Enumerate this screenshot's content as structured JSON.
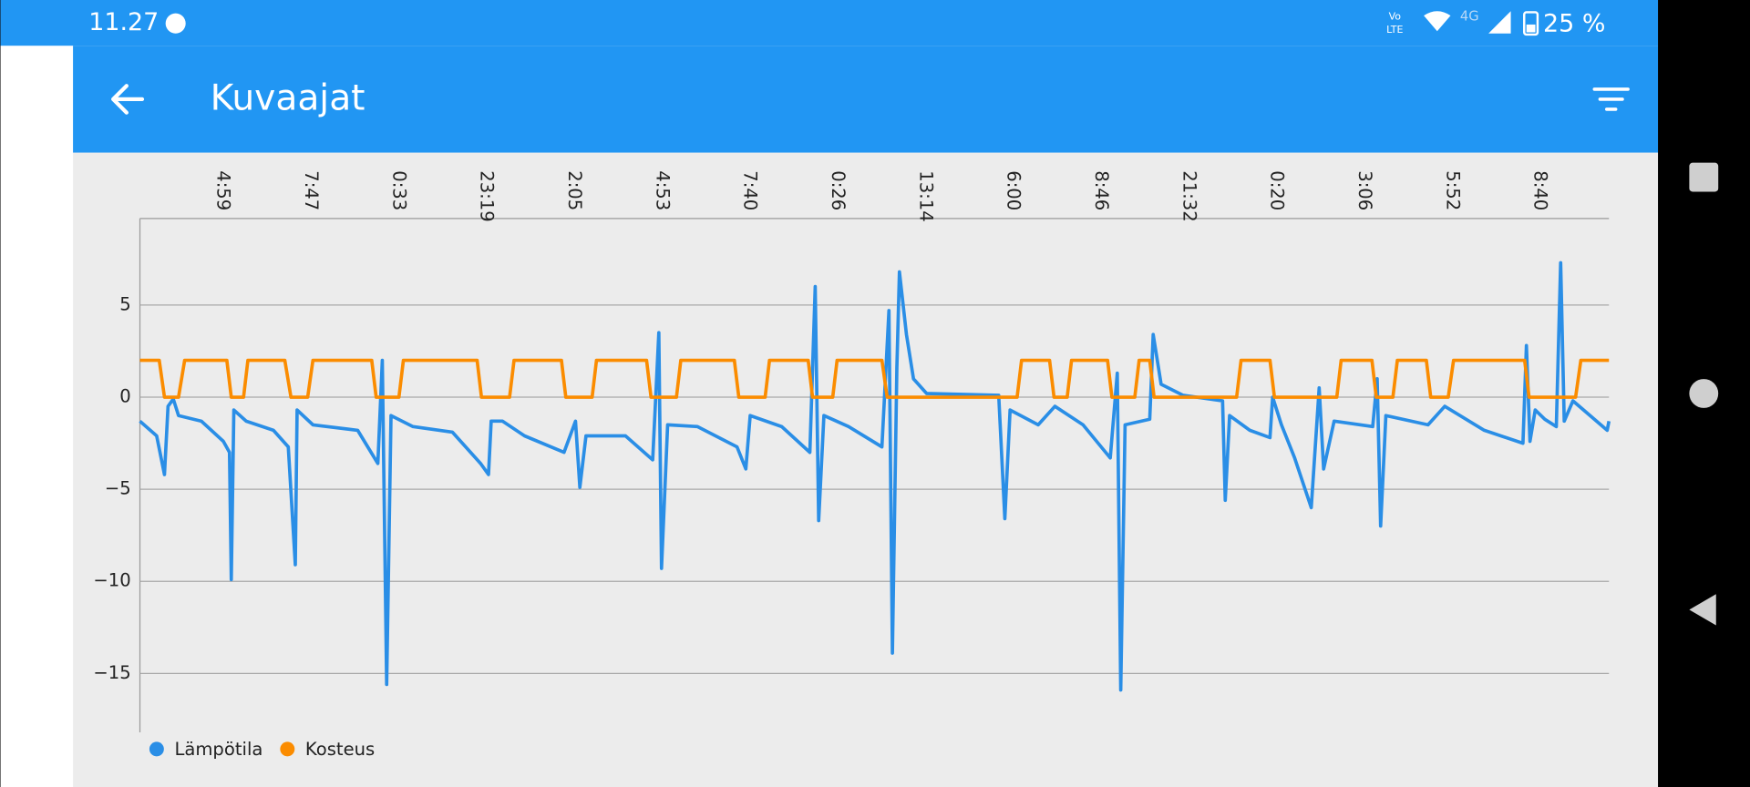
{
  "status": {
    "time": "11.27",
    "volte_top": "Vo",
    "volte_bottom": "LTE",
    "network": "4G",
    "battery": "25 %"
  },
  "header": {
    "title": "Kuvaajat"
  },
  "chart_data": {
    "type": "line",
    "grid": true,
    "xlim": [
      -0.94,
      15.79
    ],
    "xticks": [
      {
        "value": 0,
        "label": "4:59"
      },
      {
        "value": 1,
        "label": "7:47"
      },
      {
        "value": 2,
        "label": "0:33"
      },
      {
        "value": 3,
        "label": "23:19"
      },
      {
        "value": 4,
        "label": "2:05"
      },
      {
        "value": 5,
        "label": "4:53"
      },
      {
        "value": 6,
        "label": "7:40"
      },
      {
        "value": 7,
        "label": "0:26"
      },
      {
        "value": 8,
        "label": "13:14"
      },
      {
        "value": 9,
        "label": "6:00"
      },
      {
        "value": 10,
        "label": "8:46"
      },
      {
        "value": 11,
        "label": "21:32"
      },
      {
        "value": 12,
        "label": "0:20"
      },
      {
        "value": 13,
        "label": "3:06"
      },
      {
        "value": 14,
        "label": "5:52"
      },
      {
        "value": 15,
        "label": "8:40"
      }
    ],
    "ylim": [
      -18.2,
      9.7
    ],
    "yticks": [
      {
        "value": -15,
        "label": "−15"
      },
      {
        "value": -10,
        "label": "−10"
      },
      {
        "value": -5,
        "label": "−5"
      },
      0,
      5
    ],
    "legend": "bottom-left",
    "series": [
      {
        "name": "Lämpötila",
        "color": "#2a8ee6",
        "x": [
          -0.94,
          -0.75,
          -0.66,
          -0.62,
          -0.56,
          -0.5,
          -0.24,
          0.01,
          0.08,
          0.1,
          0.13,
          0.27,
          0.58,
          0.75,
          0.83,
          0.85,
          1.03,
          1.54,
          1.77,
          1.82,
          1.87,
          1.92,
          2.17,
          2.62,
          2.94,
          3.03,
          3.06,
          3.19,
          3.44,
          3.89,
          4.02,
          4.07,
          4.14,
          4.59,
          4.9,
          4.97,
          5.0,
          5.07,
          5.41,
          5.86,
          5.96,
          6.01,
          6.37,
          6.69,
          6.75,
          6.79,
          6.85,
          7.13,
          7.51,
          7.59,
          7.63,
          7.68,
          7.71,
          7.79,
          7.87,
          8.02,
          8.84,
          8.91,
          8.97,
          9.29,
          9.48,
          9.8,
          10.11,
          10.19,
          10.23,
          10.28,
          10.56,
          10.6,
          10.69,
          10.94,
          11.39,
          11.42,
          11.47,
          11.7,
          11.93,
          11.96,
          12.06,
          12.21,
          12.4,
          12.49,
          12.54,
          12.66,
          13.1,
          13.15,
          13.19,
          13.25,
          13.73,
          13.92,
          14.37,
          14.81,
          14.85,
          14.89,
          14.95,
          15.06,
          15.19,
          15.24,
          15.28,
          15.38,
          15.77,
          15.79
        ],
        "values": [
          -1.3,
          -2.1,
          -4.2,
          -0.5,
          -0.1,
          -1.0,
          -1.3,
          -2.4,
          -3.0,
          -9.9,
          -0.7,
          -1.3,
          -1.8,
          -2.7,
          -9.1,
          -0.7,
          -1.5,
          -1.8,
          -3.6,
          2.0,
          -15.6,
          -1.0,
          -1.6,
          -1.9,
          -3.6,
          -4.2,
          -1.3,
          -1.3,
          -2.1,
          -3.0,
          -1.3,
          -4.9,
          -2.1,
          -2.1,
          -3.4,
          3.5,
          -9.3,
          -1.5,
          -1.6,
          -2.7,
          -3.9,
          -1.0,
          -1.6,
          -3.0,
          6.0,
          -6.7,
          -1.0,
          -1.6,
          -2.7,
          4.7,
          -13.9,
          1.6,
          6.8,
          3.4,
          1.0,
          0.2,
          0.1,
          -6.6,
          -0.7,
          -1.5,
          -0.5,
          -1.5,
          -3.3,
          1.3,
          -15.9,
          -1.5,
          -1.2,
          3.4,
          0.7,
          0.1,
          -0.2,
          -5.6,
          -1.0,
          -1.8,
          -2.2,
          0,
          -1.5,
          -3.3,
          -6.0,
          0.5,
          -3.9,
          -1.3,
          -1.6,
          1.0,
          -7.0,
          -1.0,
          -1.5,
          -0.5,
          -1.8,
          -2.5,
          2.8,
          -2.4,
          -0.7,
          -1.2,
          -1.6,
          7.3,
          -1.3,
          -0.2,
          -1.8,
          -1.3
        ]
      },
      {
        "name": "Kosteus",
        "color": "#fb8c00",
        "x": [
          -0.94,
          -0.72,
          -0.66,
          -0.5,
          -0.43,
          0.05,
          0.1,
          0.24,
          0.29,
          0.71,
          0.78,
          0.97,
          1.03,
          1.7,
          1.75,
          2.01,
          2.06,
          2.9,
          2.95,
          3.27,
          3.32,
          3.86,
          3.91,
          4.21,
          4.26,
          4.83,
          4.88,
          5.17,
          5.22,
          5.83,
          5.88,
          6.18,
          6.23,
          6.67,
          6.72,
          6.95,
          7.0,
          7.51,
          7.57,
          9.05,
          9.1,
          9.42,
          9.47,
          9.62,
          9.67,
          10.08,
          10.13,
          10.39,
          10.44,
          10.56,
          10.61,
          11.55,
          11.6,
          11.93,
          11.98,
          12.69,
          12.74,
          13.09,
          13.14,
          13.33,
          13.38,
          13.71,
          13.76,
          13.96,
          14.02,
          14.83,
          14.88,
          15.41,
          15.47,
          15.79
        ],
        "values": [
          2,
          2,
          0,
          0,
          2,
          2,
          0,
          0,
          2,
          2,
          0,
          0,
          2,
          2,
          0,
          0,
          2,
          2,
          0,
          0,
          2,
          2,
          0,
          0,
          2,
          2,
          0,
          0,
          2,
          2,
          0,
          0,
          2,
          2,
          0,
          0,
          2,
          2,
          0,
          0,
          2,
          2,
          0,
          0,
          2,
          2,
          0,
          0,
          2,
          2,
          0,
          0,
          2,
          2,
          0,
          0,
          2,
          2,
          0,
          0,
          2,
          2,
          0,
          0,
          2,
          2,
          0,
          0,
          2,
          2
        ]
      }
    ]
  }
}
